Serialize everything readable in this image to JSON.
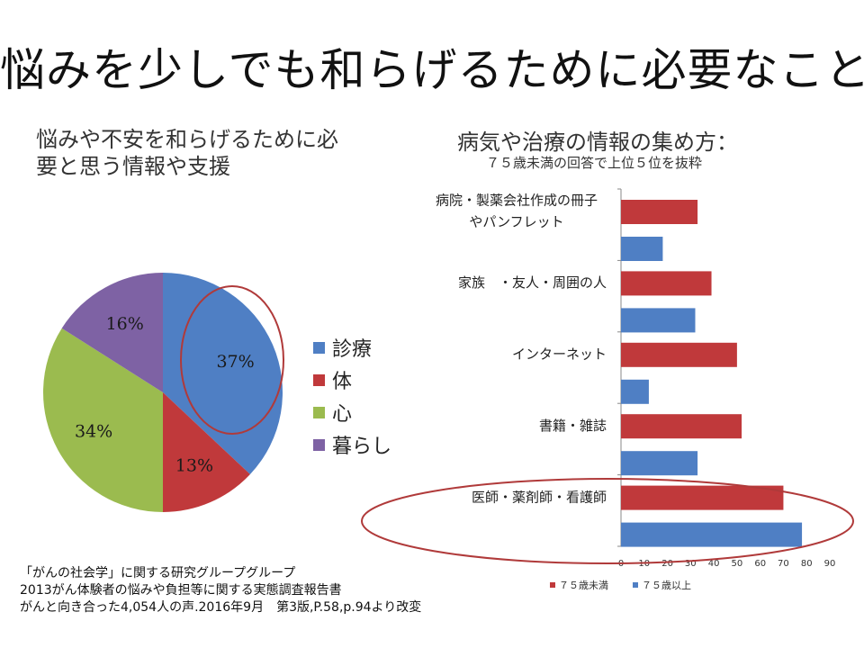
{
  "title": "悩みを少しでも和らげるために必要なこと",
  "pie_heading_lines": [
    "悩みや不安を和らげるために必",
    "要と思う情報や支援"
  ],
  "bar_heading": "病気や治療の情報の集め方：",
  "bar_subheading": "７５歳未満の回答で上位５位を抜粋",
  "source_lines": [
    "「がんの社会学」に関する研究グループグループ",
    "2013がん体験者の悩みや負担等に関する実態調査報告書",
    "がんと向き合った4,054人の声.2016年9月　第3版,P.58,p.94より改変"
  ],
  "chart_data": [
    {
      "type": "pie",
      "title": "悩みや不安を和らげるために必要と思う情報や支援",
      "slices": [
        {
          "label": "診療",
          "value": 37,
          "text": "37%",
          "color": "#4f7fc4"
        },
        {
          "label": "体",
          "value": 13,
          "text": "13%",
          "color": "#c0393b"
        },
        {
          "label": "心",
          "value": 34,
          "text": "34%",
          "color": "#9bbb4f"
        },
        {
          "label": "暮らし",
          "value": 16,
          "text": "16%",
          "color": "#7e62a4"
        }
      ],
      "start_angle_deg": 0,
      "direction": "clockwise",
      "highlighted_slice": "診療",
      "legend_position": "right"
    },
    {
      "type": "bar",
      "orientation": "horizontal",
      "title": "病気や治療の情報の集め方：",
      "subtitle": "７５歳未満の回答で上位５位を抜粋",
      "categories": [
        [
          "病院・製薬会社作成の冊子",
          "やパンフレット"
        ],
        [
          "家族　・友人・周囲の人"
        ],
        [
          "インターネット"
        ],
        [
          "書籍・雑誌"
        ],
        [
          "医師・薬剤師・看護師"
        ]
      ],
      "series": [
        {
          "name": "７５歳未満",
          "color": "#c0393b",
          "values": [
            33,
            39,
            50,
            52,
            70
          ]
        },
        {
          "name": "７５歳以上",
          "color": "#4f7fc4",
          "values": [
            18,
            32,
            12,
            33,
            78
          ]
        }
      ],
      "xlim": [
        0,
        90
      ],
      "xticks": [
        0,
        10,
        20,
        30,
        40,
        50,
        60,
        70,
        80,
        90
      ],
      "grid": false,
      "legend_position": "bottom",
      "highlighted_category": "医師・薬剤師・看護師"
    }
  ]
}
